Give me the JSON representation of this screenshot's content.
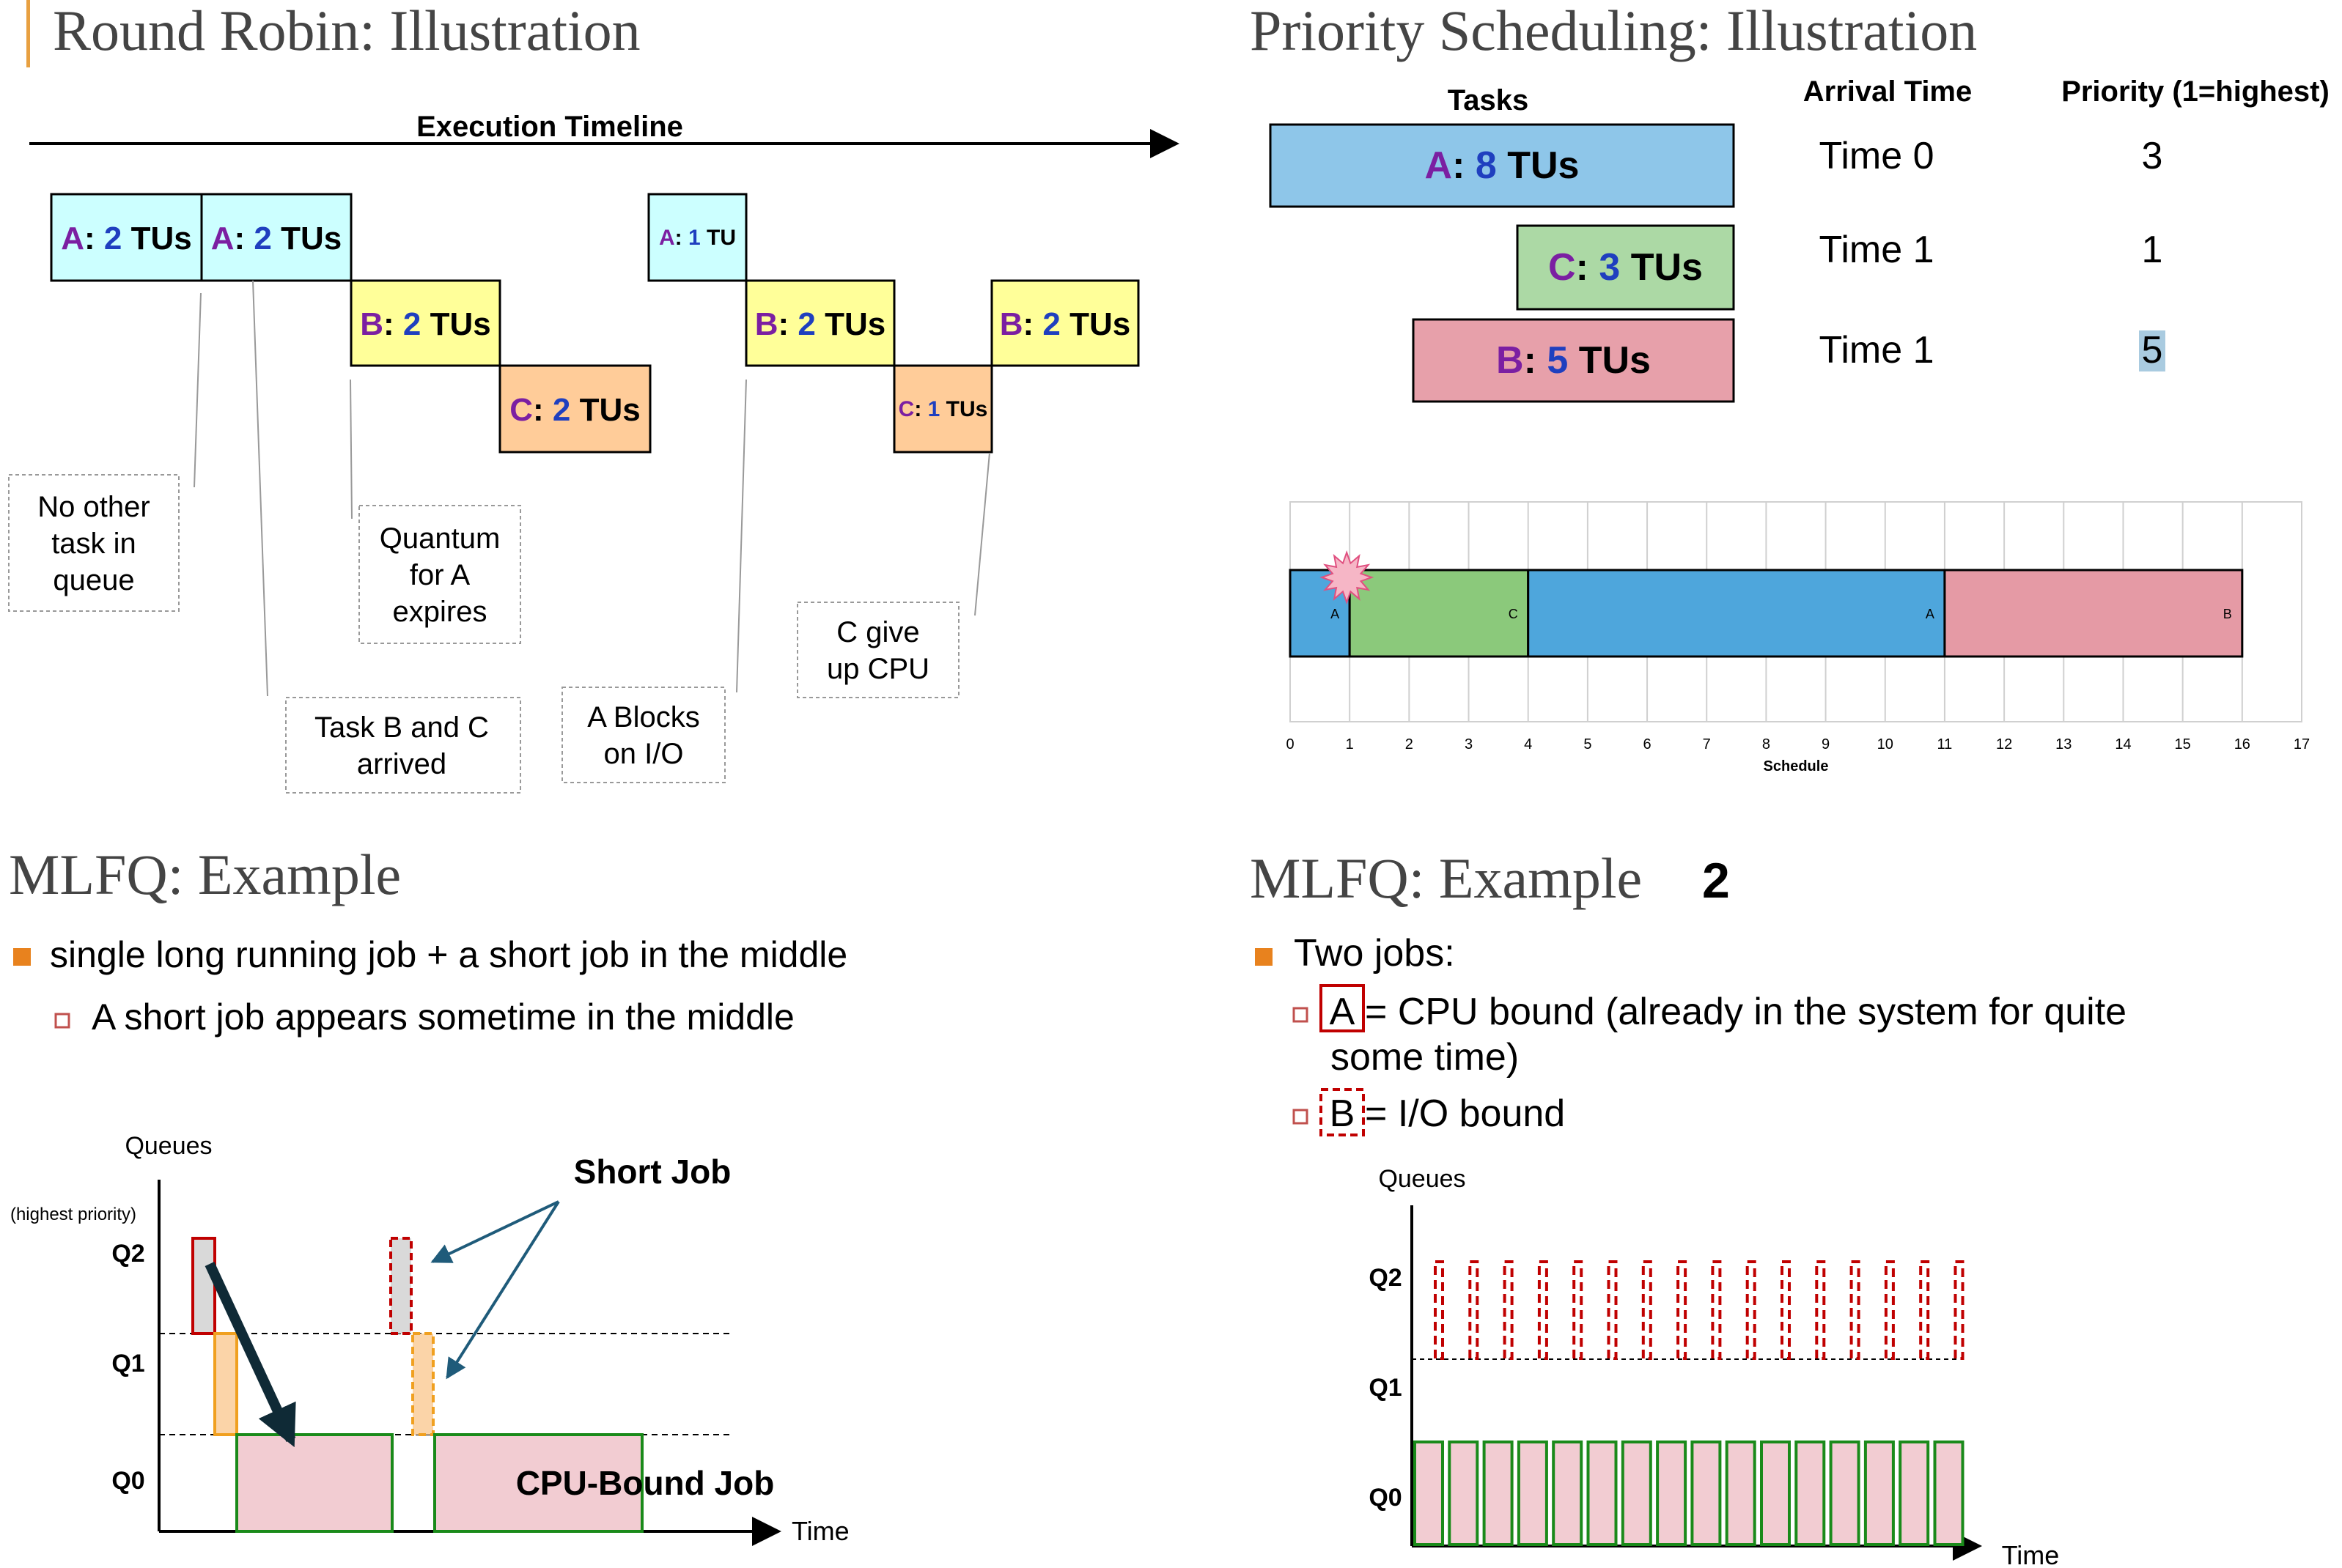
{
  "round_robin": {
    "title": "Round Robin: Illustration",
    "timeline_label": "Execution Timeline",
    "blocks": [
      {
        "task": "A",
        "amount": "2",
        "unit": "TUs",
        "color": "#ccffff",
        "size": "big"
      },
      {
        "task": "A",
        "amount": "2",
        "unit": "TUs",
        "color": "#ccffff",
        "size": "big"
      },
      {
        "task": "B",
        "amount": "2",
        "unit": "TUs",
        "color": "#ffff99",
        "size": "big"
      },
      {
        "task": "C",
        "amount": "2",
        "unit": "TUs",
        "color": "#ffcc99",
        "size": "big"
      },
      {
        "task": "A",
        "amount": "1",
        "unit": "TU",
        "color": "#ccffff",
        "size": "small"
      },
      {
        "task": "B",
        "amount": "2",
        "unit": "TUs",
        "color": "#ffff99",
        "size": "big"
      },
      {
        "task": "C",
        "amount": "1",
        "unit": "TUs",
        "color": "#ffcc99",
        "size": "small"
      },
      {
        "task": "B",
        "amount": "2",
        "unit": "TUs",
        "color": "#ffff99",
        "size": "big"
      }
    ],
    "notes": [
      {
        "lines": [
          "No other",
          "task in",
          "queue"
        ]
      },
      {
        "lines": [
          "Quantum",
          "for A",
          "expires"
        ]
      },
      {
        "lines": [
          "Task B and C",
          "arrived"
        ]
      },
      {
        "lines": [
          "A Blocks",
          "on I/O"
        ]
      },
      {
        "lines": [
          "C give",
          "up CPU"
        ]
      }
    ]
  },
  "priority": {
    "title": "Priority Scheduling: Illustration",
    "headers": {
      "tasks": "Tasks",
      "arrival": "Arrival Time",
      "priority": "Priority (1=highest)"
    },
    "rows": [
      {
        "task": "A",
        "amount": "8",
        "unit": "TUs",
        "arrival": "Time 0",
        "priority": "3",
        "color": "#8ec6e9"
      },
      {
        "task": "C",
        "amount": "3",
        "unit": "TUs",
        "arrival": "Time 1",
        "priority": "1",
        "color": "#acd9a5"
      },
      {
        "task": "B",
        "amount": "5",
        "unit": "TUs",
        "arrival": "Time 1",
        "priority": "5",
        "color": "#e7a0aa"
      }
    ],
    "chart_data": {
      "type": "bar",
      "xlabel": "Schedule",
      "xlim": [
        0,
        17
      ],
      "ticks": [
        "0",
        "1",
        "2",
        "3",
        "4",
        "5",
        "6",
        "7",
        "8",
        "9",
        "10",
        "11",
        "12",
        "13",
        "14",
        "15",
        "16",
        "17"
      ],
      "segments": [
        {
          "label": "A",
          "start": 0,
          "end": 1,
          "color": "#4ea6dc"
        },
        {
          "label": "C",
          "start": 1,
          "end": 4,
          "color": "#8bc97b"
        },
        {
          "label": "A",
          "start": 4,
          "end": 11,
          "color": "#4ea6dc"
        },
        {
          "label": "B",
          "start": 11,
          "end": 16,
          "color": "#e59aa5"
        }
      ],
      "preempt_marker_at": 1
    }
  },
  "mlfq1": {
    "title": "MLFQ: Example",
    "bullet1": "single long running job + a short job in the middle",
    "bullet2": "A short job appears sometime in the middle",
    "queues_label": "Queues",
    "highest_label": "(highest priority)",
    "q2": "Q2",
    "q1": "Q1",
    "q0": "Q0",
    "time_label": "Time",
    "short_job_label": "Short Job",
    "cpu_job_label": "CPU-Bound Job",
    "colors": {
      "q2": "#8b1a1a",
      "q1": "#f0a020",
      "q0": "#1a7a1a"
    }
  },
  "mlfq2": {
    "title": "MLFQ: Example",
    "title_suffix": "2",
    "bullet1": "Two jobs:",
    "a_label": "A",
    "a_text_line1": "= CPU bound (already in the system for quite",
    "a_text_line2": "some time)",
    "b_label": "B",
    "b_text": "= I/O bound",
    "queues_label": "Queues",
    "q2": "Q2",
    "q1": "Q1",
    "q0": "Q0",
    "time_label": "Time",
    "io_job_bursts": 16,
    "cpu_job_bursts": 16
  }
}
